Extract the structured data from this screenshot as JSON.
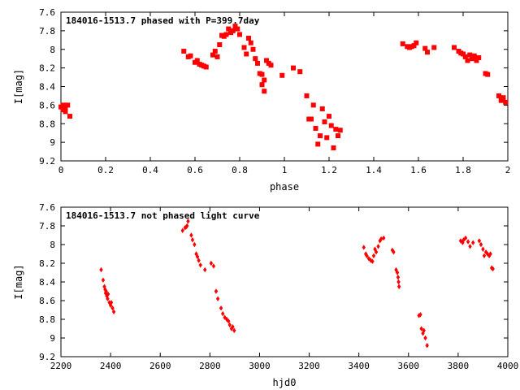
{
  "chart_data": [
    {
      "type": "scatter",
      "title": "184016-1513.7 phased with P=399.7day",
      "xlabel": "phase",
      "ylabel": "I[mag]",
      "xlim": [
        0,
        2
      ],
      "ylim": [
        7.6,
        9.2
      ],
      "y_inverted": true,
      "grid": false,
      "marker_color": "#ff0000",
      "xticks": [
        "0",
        "0.2",
        "0.4",
        "0.6",
        "0.8",
        "1",
        "1.2",
        "1.4",
        "1.6",
        "1.8",
        "2"
      ],
      "yticks": [
        "7.6",
        "7.8",
        "8",
        "8.2",
        "8.4",
        "8.6",
        "8.8",
        "9",
        "9.2"
      ],
      "series": [
        {
          "x": [
            0.0,
            0.01,
            0.01,
            0.02,
            0.02,
            0.03,
            0.04,
            0.55,
            0.57,
            0.58,
            0.6,
            0.61,
            0.62,
            0.63,
            0.64,
            0.65,
            0.68,
            0.69,
            0.7,
            0.71,
            0.72,
            0.73,
            0.74,
            0.75,
            0.76,
            0.77,
            0.78,
            0.79,
            0.8,
            0.82,
            0.83,
            0.84,
            0.85,
            0.86,
            0.87,
            0.88,
            0.89,
            0.9,
            0.9,
            0.91,
            0.91,
            0.92,
            0.93,
            0.94,
            0.99,
            1.04,
            1.07,
            1.1,
            1.11,
            1.12,
            1.13,
            1.14,
            1.15,
            1.16,
            1.17,
            1.18,
            1.19,
            1.2,
            1.21,
            1.22,
            1.23,
            1.24,
            1.25,
            1.53,
            1.55,
            1.56,
            1.57,
            1.58,
            1.59,
            1.63,
            1.64,
            1.67,
            1.76,
            1.78,
            1.79,
            1.8,
            1.81,
            1.82,
            1.83,
            1.84,
            1.85,
            1.86,
            1.87,
            1.9,
            1.91,
            1.96,
            1.97,
            1.98,
            1.99
          ],
          "y": [
            8.62,
            8.65,
            8.6,
            8.67,
            8.62,
            8.6,
            8.72,
            8.02,
            8.08,
            8.07,
            8.14,
            8.12,
            8.16,
            8.17,
            8.18,
            8.19,
            8.06,
            8.02,
            8.08,
            7.95,
            7.85,
            7.86,
            7.84,
            7.78,
            7.82,
            7.8,
            7.75,
            7.78,
            7.84,
            7.98,
            8.05,
            7.88,
            7.93,
            8.0,
            8.1,
            8.15,
            8.26,
            8.27,
            8.38,
            8.33,
            8.45,
            8.12,
            8.15,
            8.17,
            8.28,
            8.2,
            8.24,
            8.5,
            8.75,
            8.75,
            8.6,
            8.85,
            9.02,
            8.93,
            8.64,
            8.78,
            8.95,
            8.72,
            8.82,
            9.06,
            8.86,
            8.93,
            8.87,
            7.94,
            7.97,
            7.98,
            7.97,
            7.96,
            7.93,
            7.99,
            8.03,
            7.98,
            7.98,
            8.02,
            8.04,
            8.05,
            8.08,
            8.12,
            8.06,
            8.1,
            8.07,
            8.12,
            8.09,
            8.26,
            8.27,
            8.5,
            8.55,
            8.52,
            8.57
          ]
        }
      ]
    },
    {
      "type": "scatter",
      "title": "184016-1513.7 not phased light curve",
      "xlabel": "hjd0",
      "ylabel": "I[mag]",
      "xlim": [
        2200,
        4000
      ],
      "ylim": [
        7.6,
        9.2
      ],
      "y_inverted": true,
      "grid": false,
      "marker_color": "#ff0000",
      "xticks": [
        "2200",
        "2400",
        "2600",
        "2800",
        "3000",
        "3200",
        "3400",
        "3600",
        "3800",
        "4000"
      ],
      "yticks": [
        "7.6",
        "7.8",
        "8",
        "8.2",
        "8.4",
        "8.6",
        "8.8",
        "9",
        "9.2"
      ],
      "series": [
        {
          "x": [
            2362,
            2370,
            2375,
            2378,
            2380,
            2382,
            2385,
            2388,
            2390,
            2395,
            2400,
            2403,
            2408,
            2413,
            2690,
            2700,
            2705,
            2708,
            2712,
            2725,
            2730,
            2738,
            2745,
            2750,
            2755,
            2762,
            2780,
            2805,
            2815,
            2825,
            2832,
            2845,
            2852,
            2860,
            2868,
            2875,
            2880,
            2887,
            2892,
            2898,
            3420,
            3428,
            3432,
            3440,
            3448,
            3455,
            3460,
            3465,
            3470,
            3478,
            3485,
            3490,
            3500,
            3535,
            3540,
            3550,
            3555,
            3558,
            3560,
            3562,
            3642,
            3648,
            3652,
            3658,
            3662,
            3668,
            3675,
            3810,
            3818,
            3822,
            3830,
            3840,
            3848,
            3860,
            3885,
            3892,
            3900,
            3905,
            3912,
            3918,
            3925,
            3930,
            3935,
            3940
          ],
          "y": [
            8.27,
            8.38,
            8.45,
            8.48,
            8.52,
            8.5,
            8.55,
            8.58,
            8.53,
            8.62,
            8.65,
            8.62,
            8.68,
            8.72,
            7.85,
            7.82,
            7.81,
            7.8,
            7.75,
            7.9,
            7.95,
            8.0,
            8.1,
            8.13,
            8.17,
            8.22,
            8.27,
            8.2,
            8.23,
            8.5,
            8.58,
            8.68,
            8.74,
            8.78,
            8.8,
            8.82,
            8.86,
            8.9,
            8.88,
            8.92,
            8.03,
            8.1,
            8.12,
            8.15,
            8.17,
            8.18,
            8.12,
            8.05,
            8.08,
            8.02,
            7.96,
            7.94,
            7.93,
            8.06,
            8.08,
            8.27,
            8.3,
            8.35,
            8.4,
            8.45,
            8.76,
            8.75,
            8.9,
            8.95,
            8.92,
            9.0,
            9.08,
            7.96,
            7.98,
            7.95,
            7.93,
            7.97,
            8.02,
            7.98,
            7.96,
            8.0,
            8.05,
            8.12,
            8.08,
            8.1,
            8.12,
            8.1,
            8.25,
            8.26
          ]
        }
      ]
    }
  ]
}
